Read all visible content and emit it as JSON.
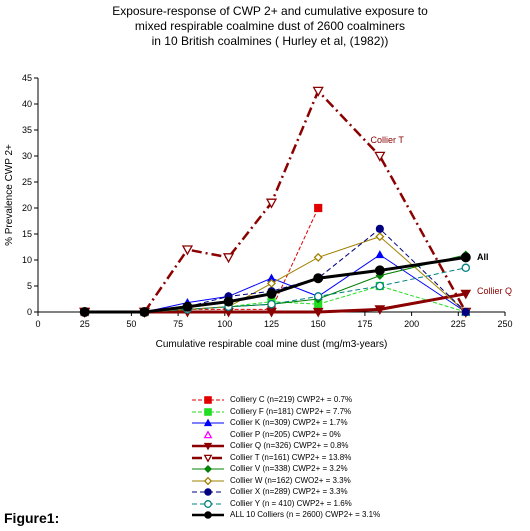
{
  "title_lines": [
    "Exposure-response of CWP 2+ and cumulative exposure to",
    "mixed respirable coalmine dust of 2600 coalminers",
    "in 10 British coalmines ( Hurley et al, (1982))"
  ],
  "figure_label": "Figure1:",
  "chart_data": {
    "type": "line",
    "title": "Exposure-response of CWP 2+ and cumulative exposure to mixed respirable coalmine dust of 2600 coalminers in 10 British coalmines ( Hurley et al, (1982))",
    "xlabel": "Cumulative respirable coal mine dust (mg/m3-years)",
    "ylabel": "% Prevalence CWP 2+",
    "xlim": [
      0,
      250
    ],
    "ylim": [
      0,
      45
    ],
    "xticks": [
      0,
      25,
      50,
      75,
      100,
      125,
      150,
      175,
      200,
      225,
      250
    ],
    "yticks": [
      0,
      5,
      10,
      15,
      20,
      25,
      30,
      35,
      40,
      45
    ],
    "legend_position": "below",
    "annotations": [
      {
        "text": "Collier T",
        "x": 178,
        "y": 32.5
      },
      {
        "text": "All",
        "x": 235,
        "y": 10
      },
      {
        "text": "Collier Q",
        "x": 235,
        "y": 3.5
      }
    ],
    "series": [
      {
        "name": "Colliery C (n=219)  CWP2+ = 0.7%",
        "color": "#e00000",
        "marker": "square",
        "dash": "4,2",
        "width": 1,
        "x": [
          25,
          57,
          80,
          102,
          125,
          150
        ],
        "y": [
          0,
          0,
          0.5,
          0.5,
          0.5,
          20
        ]
      },
      {
        "name": "Colliery F (n=181) CWP2+ = 7.7%",
        "color": "#22dd22",
        "marker": "square",
        "dash": "4,2",
        "width": 1,
        "x": [
          25,
          57,
          80,
          102,
          125,
          150,
          183,
          229
        ],
        "y": [
          0,
          0,
          0.5,
          1,
          2,
          1.5,
          5,
          0
        ]
      },
      {
        "name": "Collier K (n=309) CWP2+ = 1.7%",
        "color": "#0000ff",
        "marker": "triangle",
        "dash": "",
        "width": 1,
        "x": [
          25,
          57,
          80,
          102,
          125,
          150,
          183,
          229
        ],
        "y": [
          0,
          0,
          1.8,
          3,
          6.5,
          3,
          11,
          0
        ]
      },
      {
        "name": "Collier P (n=205) CWP2+ = 0%",
        "color": "#ff00ff",
        "marker": "triangle-open",
        "dash": "",
        "width": 1,
        "x": [
          25,
          57
        ],
        "y": [
          0,
          0
        ]
      },
      {
        "name": "Collier Q (n=326) CWP2+ = 0.8%",
        "color": "#8b0000",
        "marker": "triangle-down",
        "dash": "",
        "width": 3,
        "x": [
          25,
          57,
          80,
          102,
          125,
          150,
          183,
          229
        ],
        "y": [
          0,
          0,
          0,
          0,
          0,
          0,
          0.5,
          3.5
        ]
      },
      {
        "name": "Collier T (n=161) CWP2+ = 13.8%",
        "color": "#8b0000",
        "marker": "triangle-down-open",
        "dash": "10,4,2,4",
        "width": 2.5,
        "x": [
          25,
          57,
          80,
          102,
          125,
          150,
          183,
          229
        ],
        "y": [
          0,
          0,
          12,
          10.5,
          21,
          42.5,
          30,
          0
        ]
      },
      {
        "name": "Collier V (n=338) CWP2+ = 3.2%",
        "color": "#008000",
        "marker": "diamond",
        "dash": "",
        "width": 1,
        "x": [
          25,
          57,
          80,
          102,
          125,
          150,
          183,
          229
        ],
        "y": [
          0,
          0,
          0.5,
          1,
          1.5,
          2.5,
          7,
          11
        ]
      },
      {
        "name": "Collier W (n=162) CWO2+ = 3.3%",
        "color": "#a08000",
        "marker": "diamond-open",
        "dash": "",
        "width": 1,
        "x": [
          25,
          57,
          80,
          102,
          125,
          150,
          183,
          229
        ],
        "y": [
          0,
          0,
          0.5,
          1,
          5.5,
          10.5,
          14.5,
          0
        ]
      },
      {
        "name": "Collier  X (n=289) CWP2+ = 3.3%",
        "color": "#000080",
        "marker": "circle",
        "dash": "5,3",
        "width": 1,
        "x": [
          25,
          57,
          80,
          102,
          125,
          150,
          183,
          229
        ],
        "y": [
          0,
          0,
          1,
          3,
          4,
          6.5,
          16,
          0
        ]
      },
      {
        "name": "Collier Y (n = 410) CWP2+ = 1.6%",
        "color": "#008080",
        "marker": "circle-open",
        "dash": "5,3",
        "width": 1,
        "x": [
          25,
          57,
          80,
          102,
          125,
          150,
          183,
          229
        ],
        "y": [
          0,
          0,
          0.5,
          1,
          1.5,
          3,
          5,
          8.5
        ]
      },
      {
        "name": "ALL 10 Colliers (n = 2600) CWP2+ = 3.1%",
        "color": "#000000",
        "marker": "circle",
        "dash": "",
        "width": 3,
        "x": [
          25,
          57,
          80,
          102,
          125,
          150,
          183,
          229
        ],
        "y": [
          0,
          0,
          1,
          2,
          3.5,
          6.5,
          8,
          10.5
        ]
      }
    ]
  }
}
